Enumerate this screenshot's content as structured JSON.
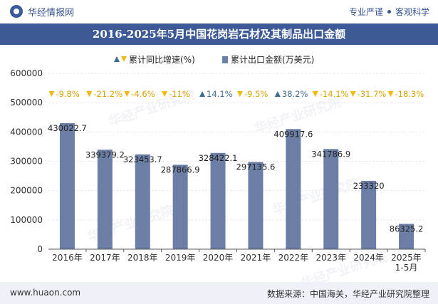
{
  "header": {
    "brand_name": "华经情报网",
    "slogan_left": "专业严谨",
    "slogan_right": "客观科学",
    "title": "2016-2025年5月中国花岗岩石材及其制品出口金额"
  },
  "footer": {
    "site": "www.huaon.com",
    "source": "数据来源：中国海关，华经产业研究院整理"
  },
  "watermark": "华经产业研究院",
  "colors": {
    "bar": "#6b7fa6",
    "up": "#3e6b8e",
    "down": "#f2b90f",
    "brand": "#3d5a96"
  },
  "chart_data": {
    "type": "bar",
    "categories": [
      "2016年",
      "2017年",
      "2018年",
      "2019年",
      "2020年",
      "2021年",
      "2022年",
      "2023年",
      "2024年",
      "2025年\n1-5月"
    ],
    "series": [
      {
        "name": "累计出口金额(万美元)",
        "values": [
          430022.7,
          339379.2,
          323453.7,
          287866.9,
          328422.1,
          297135.6,
          409917.6,
          341786.9,
          233320,
          86325.2
        ],
        "labels": [
          "430022.7",
          "339379.2",
          "323453.7",
          "287866.9",
          "328422.1",
          "297135.6",
          "409917.6",
          "341786.9",
          "233320",
          "86325.2"
        ]
      },
      {
        "name": "累计同比增速(%)",
        "values": [
          -9.8,
          -21.2,
          -4.6,
          -11,
          14.1,
          -9.5,
          38.2,
          -14.1,
          -31.7,
          -18.3
        ],
        "labels": [
          "-9.8%",
          "-21.2%",
          "-4.6%",
          "-11%",
          "14.1%",
          "-9.5%",
          "38.2%",
          "-14.1%",
          "-31.7%",
          "-18.3%"
        ]
      }
    ],
    "y_ticks": [
      "0",
      "100000",
      "200000",
      "300000",
      "400000",
      "500000",
      "600000"
    ],
    "ylim": [
      0,
      600000
    ],
    "legend_position": "top"
  }
}
